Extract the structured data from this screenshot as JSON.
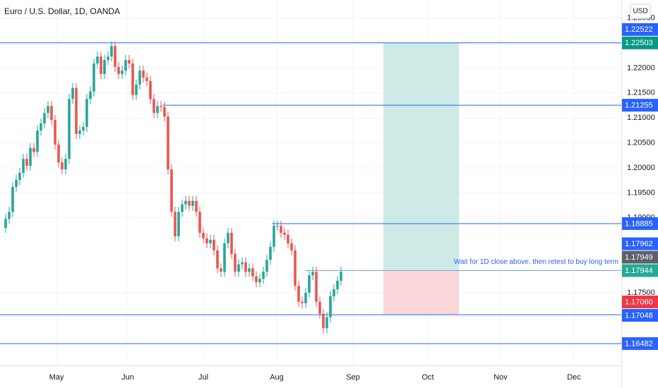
{
  "header": {
    "title": "Euro / U.S. Dollar, 1D, OANDA",
    "currency": "USD"
  },
  "chart_data": {
    "type": "candlestick",
    "x": [
      0,
      1,
      2,
      3,
      4,
      5,
      6,
      7,
      8,
      9,
      10,
      11,
      12,
      13,
      14,
      15,
      16,
      17,
      18,
      19,
      20,
      21,
      22,
      23,
      24,
      25,
      26,
      27,
      28,
      29,
      30,
      31,
      32,
      33,
      34,
      35,
      36,
      37,
      38,
      39,
      40,
      41,
      42,
      43,
      44,
      45,
      46,
      47,
      48,
      49,
      50,
      51,
      52,
      53,
      54,
      55,
      56,
      57,
      58,
      59,
      60,
      61,
      62,
      63,
      64,
      65,
      66,
      67,
      68,
      69,
      70,
      71,
      72,
      73,
      74,
      75,
      76,
      77,
      78,
      79,
      80,
      81,
      82,
      83,
      84,
      85,
      86,
      87,
      88,
      89,
      90,
      91,
      92,
      93,
      94,
      95
    ],
    "open": [
      1.188,
      1.1898,
      1.1912,
      1.1962,
      1.1976,
      1.199,
      1.2018,
      1.2004,
      1.204,
      1.2032,
      1.2075,
      1.2089,
      1.211,
      1.2124,
      1.2096,
      1.2047,
      1.2011,
      1.1997,
      1.2018,
      1.2138,
      1.216,
      1.2068,
      1.2075,
      1.2082,
      1.2138,
      1.2153,
      1.2209,
      1.2223,
      1.2188,
      1.2216,
      1.2223,
      1.2244,
      1.2202,
      1.2188,
      1.2195,
      1.2216,
      1.2209,
      1.2146,
      1.2167,
      1.2195,
      1.2181,
      1.2174,
      1.2138,
      1.211,
      1.2124,
      1.2122,
      1.2103,
      1.1997,
      1.1912,
      1.1863,
      1.1912,
      1.1927,
      1.1934,
      1.1924,
      1.1934,
      1.1912,
      1.187,
      1.1859,
      1.1849,
      1.1856,
      1.1835,
      1.1799,
      1.1792,
      1.1849,
      1.187,
      1.1828,
      1.1792,
      1.1807,
      1.1811,
      1.1792,
      1.1799,
      1.1783,
      1.1771,
      1.1778,
      1.1792,
      1.1816,
      1.1842,
      1.1884,
      1.1884,
      1.187,
      1.1866,
      1.1849,
      1.1835,
      1.1764,
      1.1732,
      1.1729,
      1.175,
      1.1785,
      1.1792,
      1.1732,
      1.1708,
      1.1679,
      1.1701,
      1.1743,
      1.1757,
      1.1774
    ],
    "high": [
      1.1908,
      1.1922,
      1.1972,
      1.1986,
      1.2,
      1.2028,
      1.2028,
      1.205,
      1.205,
      1.2085,
      1.2099,
      1.212,
      1.2134,
      1.2134,
      1.2106,
      1.2057,
      1.2021,
      1.2028,
      1.2148,
      1.217,
      1.217,
      1.2085,
      1.2092,
      1.2148,
      1.2163,
      1.2219,
      1.2233,
      1.2233,
      1.2226,
      1.2233,
      1.2254,
      1.2254,
      1.2212,
      1.2205,
      1.2226,
      1.2226,
      1.2219,
      1.2177,
      1.2205,
      1.2205,
      1.2191,
      1.2184,
      1.2148,
      1.2134,
      1.2134,
      1.2132,
      1.2113,
      1.2007,
      1.1922,
      1.1922,
      1.1937,
      1.1944,
      1.1944,
      1.1944,
      1.1944,
      1.1922,
      1.188,
      1.1869,
      1.1866,
      1.1866,
      1.1845,
      1.1809,
      1.1859,
      1.188,
      1.188,
      1.1838,
      1.1817,
      1.1821,
      1.1821,
      1.1809,
      1.1809,
      1.1793,
      1.1788,
      1.1802,
      1.1826,
      1.1852,
      1.1894,
      1.1894,
      1.1894,
      1.188,
      1.1876,
      1.1859,
      1.1845,
      1.1774,
      1.1742,
      1.176,
      1.1795,
      1.1802,
      1.1802,
      1.1742,
      1.1718,
      1.1711,
      1.1753,
      1.1767,
      1.1784,
      1.1802
    ],
    "low": [
      1.187,
      1.1888,
      1.1902,
      1.1952,
      1.1966,
      1.198,
      1.1994,
      1.1994,
      1.2022,
      1.2022,
      1.2065,
      1.2079,
      1.21,
      1.2086,
      1.2037,
      1.2001,
      1.1987,
      1.1987,
      1.2008,
      1.2128,
      1.2058,
      1.2058,
      1.2065,
      1.2072,
      1.2128,
      1.2143,
      1.2199,
      1.2178,
      1.2178,
      1.2206,
      1.2213,
      1.2192,
      1.2178,
      1.2178,
      1.2185,
      1.2199,
      1.2136,
      1.2136,
      1.2157,
      1.2171,
      1.2164,
      1.2128,
      1.21,
      1.21,
      1.2112,
      1.2093,
      1.1987,
      1.1902,
      1.1853,
      1.1853,
      1.1902,
      1.1917,
      1.1914,
      1.1914,
      1.1902,
      1.186,
      1.1849,
      1.1839,
      1.1839,
      1.1825,
      1.1789,
      1.1782,
      1.1782,
      1.1839,
      1.1818,
      1.1782,
      1.1782,
      1.1797,
      1.1782,
      1.1782,
      1.1773,
      1.1761,
      1.1761,
      1.1768,
      1.1782,
      1.1806,
      1.1832,
      1.1874,
      1.186,
      1.1856,
      1.1839,
      1.1825,
      1.1754,
      1.1722,
      1.1719,
      1.1719,
      1.174,
      1.1775,
      1.1722,
      1.1698,
      1.1669,
      1.1669,
      1.1691,
      1.1733,
      1.1747,
      1.1764
    ],
    "close": [
      1.1898,
      1.1912,
      1.1962,
      1.1976,
      1.199,
      1.2018,
      1.2004,
      1.204,
      1.2032,
      1.2075,
      1.2089,
      1.211,
      1.2124,
      1.2096,
      1.2047,
      1.2011,
      1.1997,
      1.2018,
      1.2138,
      1.216,
      1.2068,
      1.2075,
      1.2082,
      1.2138,
      1.2153,
      1.2209,
      1.2223,
      1.2188,
      1.2216,
      1.2223,
      1.2244,
      1.2202,
      1.2188,
      1.2195,
      1.2216,
      1.2209,
      1.2146,
      1.2167,
      1.2195,
      1.2181,
      1.2174,
      1.2138,
      1.211,
      1.2124,
      1.2122,
      1.2103,
      1.1997,
      1.1912,
      1.1863,
      1.1912,
      1.1927,
      1.1934,
      1.1924,
      1.1934,
      1.1912,
      1.187,
      1.1859,
      1.1849,
      1.1856,
      1.1835,
      1.1799,
      1.1792,
      1.1849,
      1.187,
      1.1828,
      1.1792,
      1.1807,
      1.1811,
      1.1792,
      1.1799,
      1.1783,
      1.1771,
      1.1778,
      1.1792,
      1.1816,
      1.1842,
      1.1884,
      1.1884,
      1.187,
      1.1866,
      1.1849,
      1.1835,
      1.1764,
      1.1732,
      1.1729,
      1.175,
      1.1785,
      1.1792,
      1.1732,
      1.1708,
      1.1679,
      1.1701,
      1.1743,
      1.1757,
      1.1774,
      1.1792
    ],
    "up_color": "#26a69a",
    "down_color": "#ef5350",
    "xlim": [
      -1.6,
      174.4
    ],
    "xticks": [
      {
        "value": 14.4,
        "label": "May"
      },
      {
        "value": 34.6,
        "label": "Jun"
      },
      {
        "value": 56,
        "label": "Jul"
      },
      {
        "value": 76.8,
        "label": "Aug"
      },
      {
        "value": 98.4,
        "label": "Sep"
      },
      {
        "value": 119.6,
        "label": "Oct"
      },
      {
        "value": 140.2,
        "label": "Nov"
      },
      {
        "value": 161,
        "label": "Dec"
      }
    ],
    "ylim": [
      1.16045,
      1.23362
    ],
    "yticks": [
      {
        "value": 1.23,
        "label": "1.23000"
      },
      {
        "value": 1.22,
        "label": "1.22000"
      },
      {
        "value": 1.215,
        "label": "1.21500"
      },
      {
        "value": 1.21,
        "label": "1.21000"
      },
      {
        "value": 1.205,
        "label": "1.20500"
      },
      {
        "value": 1.2,
        "label": "1.20000"
      },
      {
        "value": 1.195,
        "label": "1.19500"
      },
      {
        "value": 1.19,
        "label": "1.19000"
      },
      {
        "value": 1.175,
        "label": "1.17500"
      }
    ],
    "grid": true,
    "lines": [
      {
        "value": 1.22503,
        "x_start": -1.6,
        "color": "#2962ff"
      },
      {
        "value": 1.21255,
        "x_start": 44.4,
        "color": "#2962ff"
      },
      {
        "value": 1.18885,
        "x_start": 75.4,
        "color": "#2962ff"
      },
      {
        "value": 1.17944,
        "x_start": 84.8,
        "color": "#7fa3d9"
      },
      {
        "value": 1.1706,
        "x_start": -1.6,
        "color": "#2962ff"
      },
      {
        "value": 1.16482,
        "x_start": -1.6,
        "color": "#2962ff"
      }
    ],
    "position": {
      "entry": 1.17944,
      "target": 1.22503,
      "stop": 1.1706,
      "x_start": 107,
      "x_end": 128.4,
      "target_color": "#cdeae6",
      "stop_color": "#fbd6d8"
    },
    "annotation": "Wait for 1D close above, then retest to buy long term",
    "price_labels": [
      {
        "value": 1.22522,
        "label": "1.22522",
        "color": "#2962ff"
      },
      {
        "value": 1.22503,
        "label": "1.22503",
        "color": "#089981"
      },
      {
        "value": 1.21255,
        "label": "1.21255",
        "color": "#2962ff"
      },
      {
        "value": 1.18885,
        "label": "1.18885",
        "color": "#2962ff"
      },
      {
        "value": 1.17962,
        "label": "1.17962",
        "color": "#2962ff"
      },
      {
        "value": 1.17949,
        "label": "1.17949",
        "color": "#5d606b"
      },
      {
        "value": 1.17944,
        "label": "1.17944",
        "color": "#22ab94"
      },
      {
        "value": 1.1706,
        "label": "1.17060",
        "color": "#f23645"
      },
      {
        "value": 1.17048,
        "label": "1.17048",
        "color": "#2962ff"
      },
      {
        "value": 1.16482,
        "label": "1.16482",
        "color": "#2962ff"
      }
    ]
  }
}
